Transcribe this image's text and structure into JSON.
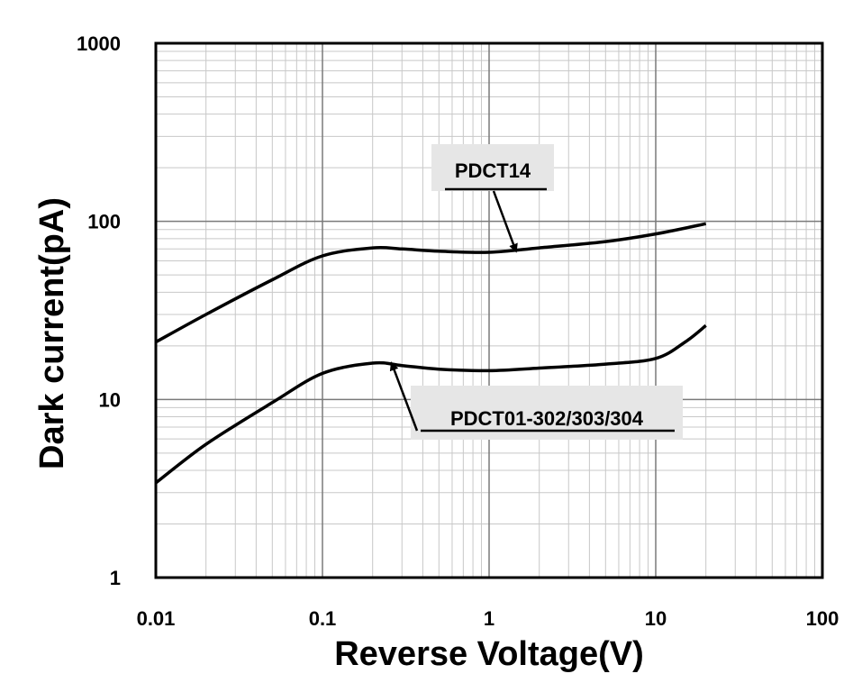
{
  "chart_data": {
    "type": "line",
    "xscale": "log",
    "yscale": "log",
    "xlim": [
      0.01,
      100
    ],
    "ylim": [
      1,
      1000
    ],
    "xlabel": "Reverse Voltage(V)",
    "ylabel": "Dark current(pA)",
    "x_ticks": [
      {
        "value": 0.01,
        "label": "0.01"
      },
      {
        "value": 0.1,
        "label": "0.1"
      },
      {
        "value": 1,
        "label": "1"
      },
      {
        "value": 10,
        "label": "10"
      },
      {
        "value": 100,
        "label": "100"
      }
    ],
    "y_ticks": [
      {
        "value": 1,
        "label": "1"
      },
      {
        "value": 10,
        "label": "10"
      },
      {
        "value": 100,
        "label": "100"
      },
      {
        "value": 1000,
        "label": "1000"
      }
    ],
    "grid": true,
    "series": [
      {
        "name": "PDCT14",
        "x": [
          0.01,
          0.02,
          0.05,
          0.1,
          0.2,
          0.3,
          0.5,
          1,
          2,
          5,
          10,
          20
        ],
        "y": [
          21,
          30,
          47,
          64,
          71,
          70,
          68,
          67,
          71,
          77,
          85,
          97
        ]
      },
      {
        "name": "PDCT01-302/303/304",
        "x": [
          0.01,
          0.02,
          0.05,
          0.1,
          0.2,
          0.3,
          0.5,
          1,
          2,
          5,
          10,
          15,
          20
        ],
        "y": [
          3.4,
          5.6,
          9.6,
          14,
          16,
          15.5,
          14.8,
          14.5,
          15,
          15.8,
          17,
          21,
          26
        ]
      }
    ],
    "annotations": [
      {
        "text": "PDCT14",
        "series": 0,
        "points_to": {
          "x": 1.45,
          "y": 68
        }
      },
      {
        "text": "PDCT01-302/303/304",
        "series": 1,
        "points_to": {
          "x": 0.26,
          "y": 16
        }
      }
    ]
  }
}
